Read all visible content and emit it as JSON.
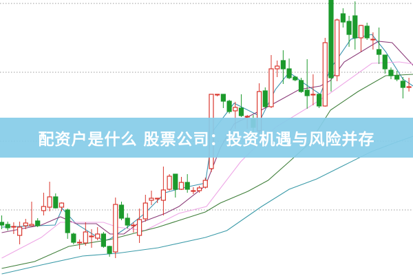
{
  "banner": {
    "title": "配资户是什么 股票公司：投资机遇与风险并存",
    "background_color": "#87cce8",
    "text_color": "#ffffff"
  },
  "chart_data": {
    "type": "candlestick",
    "title": "",
    "xlabel": "",
    "ylabel": "",
    "axes_visible": false,
    "ylim": [
      0,
      100
    ],
    "grid": true,
    "gridlines": [
      23.75,
      48.75,
      73.75,
      98.75
    ],
    "grid_style": "dotted",
    "colors": {
      "up": "#d9342b",
      "down": "#1c9a2c",
      "grid": "#999999"
    },
    "candles_ohlc": [
      [
        19.25,
        18.25,
        21.75,
        16.75
      ],
      [
        18.5,
        17.25,
        19.5,
        16.25
      ],
      [
        17.75,
        17.75,
        19.25,
        15
      ],
      [
        14.5,
        17.5,
        19.5,
        11.25
      ],
      [
        18,
        19,
        20.5,
        16.75
      ],
      [
        18,
        18.5,
        26.75,
        18
      ],
      [
        19.75,
        18,
        20.75,
        17.5
      ],
      [
        23.5,
        25,
        30,
        21.75
      ],
      [
        24.75,
        28.5,
        34,
        23.25
      ],
      [
        28.5,
        24.5,
        29.75,
        24.25
      ],
      [
        24.75,
        26.25,
        26.5,
        23.25
      ],
      [
        23.75,
        15.5,
        24.25,
        13.25
      ],
      [
        15,
        12,
        15.5,
        11.25
      ],
      [
        12,
        12,
        13,
        9.5
      ],
      [
        11.75,
        15.75,
        19.25,
        10.75
      ],
      [
        14.25,
        14.25,
        16.75,
        10
      ],
      [
        13.5,
        15,
        17.5,
        12.75
      ],
      [
        15,
        10.5,
        15.75,
        10
      ],
      [
        10.5,
        8,
        10.75,
        6.75
      ],
      [
        8.5,
        25.75,
        28.25,
        6.25
      ],
      [
        25.5,
        20.75,
        26.75,
        20
      ],
      [
        20.75,
        18.25,
        22.5,
        17
      ],
      [
        18.25,
        18.25,
        19.25,
        15.5
      ],
      [
        14.5,
        20.25,
        24.25,
        11.75
      ],
      [
        20.5,
        26.25,
        29.25,
        19.5
      ],
      [
        27.25,
        28,
        30.75,
        25.5
      ],
      [
        28,
        28,
        28,
        26.25
      ],
      [
        27.25,
        31,
        39.5,
        21.75
      ],
      [
        31.25,
        36,
        36.75,
        30.75
      ],
      [
        36.75,
        31.25,
        36.75,
        28.25
      ],
      [
        31.25,
        33.75,
        35.75,
        31
      ],
      [
        33.75,
        31.25,
        36.75,
        30
      ],
      [
        30.75,
        30.75,
        32,
        29.5
      ],
      [
        30.75,
        31.75,
        32.5,
        30
      ],
      [
        32,
        34.5,
        35.5,
        31.5
      ],
      [
        38.75,
        65.75,
        65.75,
        37.5
      ],
      [
        65.75,
        65.75,
        65.75,
        65
      ],
      [
        65.75,
        63.25,
        65.75,
        60.75
      ],
      [
        63.25,
        59.5,
        63.75,
        58.75
      ],
      [
        59.75,
        61,
        63,
        53.25
      ],
      [
        60.75,
        58,
        65.75,
        57.5
      ],
      [
        57.75,
        57.75,
        58.25,
        53.25
      ],
      [
        56.75,
        53.75,
        58.25,
        50
      ],
      [
        52.5,
        66.75,
        69.75,
        51.25
      ],
      [
        67,
        61.25,
        68.25,
        60.75
      ],
      [
        61.25,
        75,
        80,
        60.75
      ],
      [
        75,
        76,
        78,
        72
      ],
      [
        78,
        75,
        81.75,
        69.5
      ],
      [
        75,
        71.75,
        78.75,
        71.25
      ],
      [
        72,
        71,
        72.5,
        70.5
      ],
      [
        70.75,
        66.75,
        71.75,
        66.25
      ],
      [
        67.25,
        65.25,
        78.5,
        60.5
      ],
      [
        65.75,
        65.75,
        73,
        61.75
      ],
      [
        65.75,
        61.5,
        66,
        60.75
      ],
      [
        61.5,
        84.5,
        86.25,
        61.25
      ],
      [
        100,
        71.75,
        100,
        66.75
      ],
      [
        72.5,
        92.75,
        93.25,
        70.5
      ],
      [
        95,
        92,
        97,
        90
      ],
      [
        92.25,
        87.5,
        94.25,
        83
      ],
      [
        94.25,
        86.25,
        99.5,
        82
      ],
      [
        86.25,
        90.75,
        91,
        81.25
      ],
      [
        90.5,
        86.25,
        91.75,
        85.5
      ],
      [
        85.75,
        85.75,
        88.25,
        82
      ],
      [
        82,
        80.25,
        90,
        76.75
      ],
      [
        80,
        75,
        80,
        73.25
      ],
      [
        74.5,
        72.5,
        75.5,
        71.25
      ],
      [
        72.5,
        71.25,
        74.25,
        70.5
      ],
      [
        70.5,
        68.25,
        72,
        64.25
      ],
      [
        68.5,
        68.5,
        71.75,
        66.75
      ]
    ],
    "moving_averages": [
      {
        "color": "#3b93b0",
        "points": [
          [
            0,
            17.5
          ],
          [
            8.9,
            18.25
          ],
          [
            10.1,
            24.25
          ],
          [
            12.4,
            18.75
          ],
          [
            17,
            12.5
          ],
          [
            18.1,
            13.25
          ],
          [
            21,
            17.5
          ],
          [
            23.9,
            22.5
          ],
          [
            27.3,
            30
          ],
          [
            30.2,
            31.75
          ],
          [
            34,
            33.5
          ],
          [
            35.3,
            52.5
          ],
          [
            38.8,
            62.5
          ],
          [
            41.1,
            60
          ],
          [
            43.4,
            57.5
          ],
          [
            45.7,
            67.5
          ],
          [
            48,
            73.75
          ],
          [
            50.3,
            70
          ],
          [
            53.2,
            65.75
          ],
          [
            54.9,
            75
          ],
          [
            58.3,
            85.75
          ],
          [
            61.8,
            87.5
          ],
          [
            64.1,
            81.25
          ],
          [
            67,
            71.25
          ],
          [
            68.7,
            68.75
          ]
        ]
      },
      {
        "color": "#8a3a78",
        "points": [
          [
            0,
            15.5
          ],
          [
            6.6,
            18.25
          ],
          [
            9.8,
            21.25
          ],
          [
            12.4,
            18.75
          ],
          [
            15.8,
            18.75
          ],
          [
            18.1,
            15
          ],
          [
            20.4,
            15
          ],
          [
            22.7,
            18.75
          ],
          [
            27.3,
            22.5
          ],
          [
            29.6,
            25
          ],
          [
            34,
            32.5
          ],
          [
            36.5,
            46.25
          ],
          [
            38.8,
            55
          ],
          [
            44.9,
            61.75
          ],
          [
            49.7,
            67.5
          ],
          [
            53.2,
            68.75
          ],
          [
            54.9,
            70.75
          ],
          [
            57.2,
            77.5
          ],
          [
            62.9,
            85
          ],
          [
            65.2,
            84.5
          ],
          [
            68.7,
            76.25
          ]
        ]
      },
      {
        "color": "#eea6e6",
        "points": [
          [
            0,
            6.25
          ],
          [
            6.6,
            13.75
          ],
          [
            9.8,
            19.25
          ],
          [
            17,
            19.25
          ],
          [
            19.3,
            17.5
          ],
          [
            23.9,
            16.25
          ],
          [
            29.6,
            22.5
          ],
          [
            34.2,
            25
          ],
          [
            39.9,
            41.25
          ],
          [
            45.7,
            53.75
          ],
          [
            51.4,
            61.25
          ],
          [
            54.9,
            66.25
          ],
          [
            61.8,
            77
          ],
          [
            66.4,
            77.5
          ],
          [
            68.7,
            76.75
          ]
        ]
      },
      {
        "color": "#3f7f3a",
        "points": [
          [
            0,
            2.5
          ],
          [
            5.5,
            5
          ],
          [
            11.2,
            10.5
          ],
          [
            18.1,
            13
          ],
          [
            26.1,
            17.5
          ],
          [
            34,
            23
          ],
          [
            36.5,
            26.25
          ],
          [
            41.1,
            30.5
          ],
          [
            44.5,
            34.5
          ],
          [
            48,
            41.25
          ],
          [
            51.4,
            48
          ],
          [
            54.9,
            60
          ],
          [
            59.5,
            66.75
          ],
          [
            64.1,
            72.5
          ],
          [
            68.7,
            73
          ]
        ]
      },
      {
        "color": "#3a9aa8",
        "points": [
          [
            0,
            0.5
          ],
          [
            6.6,
            3.75
          ],
          [
            13.5,
            7
          ],
          [
            19.3,
            8
          ],
          [
            26.1,
            10
          ],
          [
            34,
            13.75
          ],
          [
            37.6,
            16.25
          ],
          [
            43.4,
            25
          ],
          [
            48,
            31.25
          ],
          [
            52.6,
            35
          ],
          [
            57.2,
            40
          ],
          [
            61.8,
            45
          ],
          [
            66.4,
            48.75
          ],
          [
            68.7,
            50.5
          ]
        ]
      }
    ]
  }
}
